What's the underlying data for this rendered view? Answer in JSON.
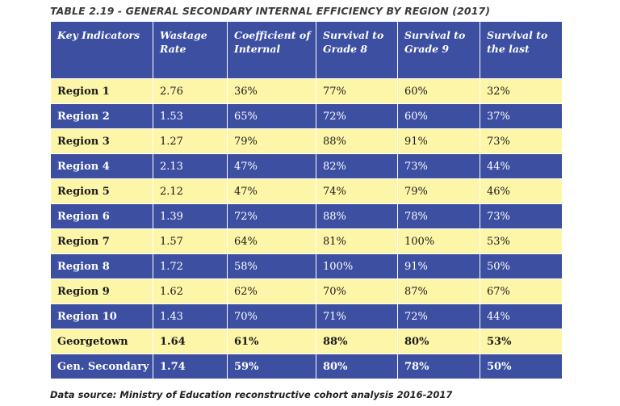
{
  "title": "TABLE 2.19 - GENERAL SECONDARY INTERNAL EFFICIENCY BY REGION (2017)",
  "headers": [
    "Key Indicators",
    "Wastage Rate",
    "Coefficient of Internal",
    "Survival  to Grade 8",
    "Survival to Grade 9",
    "Survival to the last"
  ],
  "rows": [
    [
      "Region 1",
      "2.76",
      "36%",
      "77%",
      "60%",
      "32%"
    ],
    [
      "Region 2",
      "1.53",
      "65%",
      "72%",
      "60%",
      "37%"
    ],
    [
      "Region 3",
      "1.27",
      "79%",
      "88%",
      "91%",
      "73%"
    ],
    [
      "Region 4",
      "2.13",
      "47%",
      "82%",
      "73%",
      "44%"
    ],
    [
      "Region 5",
      "2.12",
      "47%",
      "74%",
      "79%",
      "46%"
    ],
    [
      "Region 6",
      "1.39",
      "72%",
      "88%",
      "78%",
      "73%"
    ],
    [
      "Region 7",
      "1.57",
      "64%",
      "81%",
      "100%",
      "53%"
    ],
    [
      "Region 8",
      "1.72",
      "58%",
      "100%",
      "91%",
      "50%"
    ],
    [
      "Region 9",
      "1.62",
      "62%",
      "70%",
      "87%",
      "67%"
    ],
    [
      "Region 10",
      "1.43",
      "70%",
      "71%",
      "72%",
      "44%"
    ],
    [
      "Georgetown",
      "1.64",
      "61%",
      "88%",
      "80%",
      "53%"
    ],
    [
      "Gen. Secondary",
      "1.74",
      "59%",
      "80%",
      "78%",
      "50%"
    ]
  ],
  "source": "Data source: Ministry of Education reconstructive cohort analysis 2016-2017",
  "colors": {
    "header": "#3c4fa1",
    "light_row": "#fdf6a8",
    "dark_row": "#3c4fa1"
  }
}
